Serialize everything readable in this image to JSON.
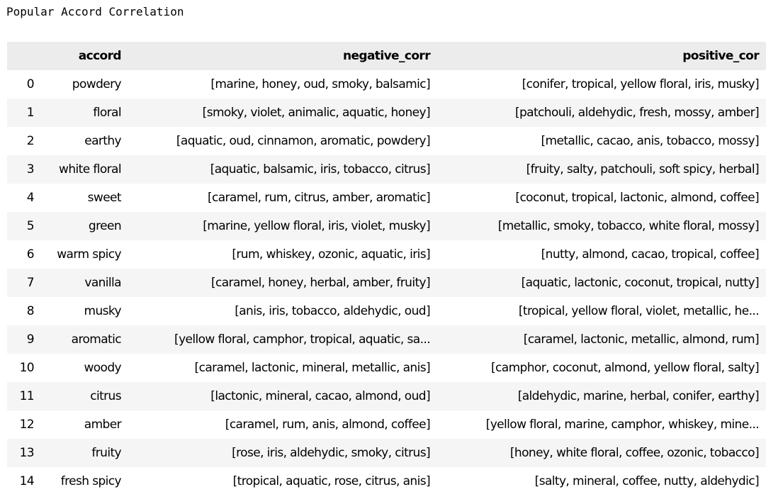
{
  "title": "Popular Accord Correlation",
  "table": {
    "columns": [
      "",
      "accord",
      "negative_corr",
      "positive_cor"
    ],
    "rows": [
      {
        "index": "0",
        "accord": "powdery",
        "negative_corr": "[marine, honey, oud, smoky, balsamic]",
        "positive_cor": "[conifer, tropical, yellow floral, iris, musky]"
      },
      {
        "index": "1",
        "accord": "floral",
        "negative_corr": "[smoky, violet, animalic, aquatic, honey]",
        "positive_cor": "[patchouli, aldehydic, fresh, mossy, amber]"
      },
      {
        "index": "2",
        "accord": "earthy",
        "negative_corr": "[aquatic, oud, cinnamon, aromatic, powdery]",
        "positive_cor": "[metallic, cacao, anis, tobacco, mossy]"
      },
      {
        "index": "3",
        "accord": "white floral",
        "negative_corr": "[aquatic, balsamic, iris, tobacco, citrus]",
        "positive_cor": "[fruity, salty, patchouli, soft spicy, herbal]"
      },
      {
        "index": "4",
        "accord": "sweet",
        "negative_corr": "[caramel, rum, citrus, amber, aromatic]",
        "positive_cor": "[coconut, tropical, lactonic, almond, coffee]"
      },
      {
        "index": "5",
        "accord": "green",
        "negative_corr": "[marine, yellow floral, iris, violet, musky]",
        "positive_cor": "[metallic, smoky, tobacco, white floral, mossy]"
      },
      {
        "index": "6",
        "accord": "warm spicy",
        "negative_corr": "[rum, whiskey, ozonic, aquatic, iris]",
        "positive_cor": "[nutty, almond, cacao, tropical, coffee]"
      },
      {
        "index": "7",
        "accord": "vanilla",
        "negative_corr": "[caramel, honey, herbal, amber, fruity]",
        "positive_cor": "[aquatic, lactonic, coconut, tropical, nutty]"
      },
      {
        "index": "8",
        "accord": "musky",
        "negative_corr": "[anis, iris, tobacco, aldehydic, oud]",
        "positive_cor": "[tropical, yellow floral, violet, metallic, he..."
      },
      {
        "index": "9",
        "accord": "aromatic",
        "negative_corr": "[yellow floral, camphor, tropical, aquatic, sa...",
        "positive_cor": "[caramel, lactonic, metallic, almond, rum]"
      },
      {
        "index": "10",
        "accord": "woody",
        "negative_corr": "[caramel, lactonic, mineral, metallic, anis]",
        "positive_cor": "[camphor, coconut, almond, yellow floral, salty]"
      },
      {
        "index": "11",
        "accord": "citrus",
        "negative_corr": "[lactonic, mineral, cacao, almond, oud]",
        "positive_cor": "[aldehydic, marine, herbal, conifer, earthy]"
      },
      {
        "index": "12",
        "accord": "amber",
        "negative_corr": "[caramel, rum, anis, almond, coffee]",
        "positive_cor": "[yellow floral, marine, camphor, whiskey, mine..."
      },
      {
        "index": "13",
        "accord": "fruity",
        "negative_corr": "[rose, iris, aldehydic, smoky, citrus]",
        "positive_cor": "[honey, white floral, coffee, ozonic, tobacco]"
      },
      {
        "index": "14",
        "accord": "fresh spicy",
        "negative_corr": "[tropical, aquatic, rose, citrus, anis]",
        "positive_cor": "[salty, mineral, coffee, nutty, aldehydic]"
      }
    ]
  }
}
